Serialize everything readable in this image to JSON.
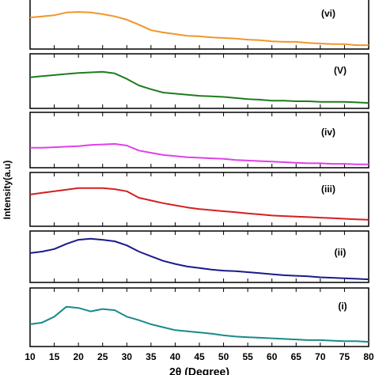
{
  "chart_data": {
    "type": "line",
    "x_label": "2θ (Degree)",
    "y_label": "Intensity(a.u)",
    "x": [
      10,
      12.5,
      15,
      17.5,
      20,
      22.5,
      25,
      27.5,
      30,
      32.5,
      35,
      37.5,
      40,
      42.5,
      45,
      47.5,
      50,
      52.5,
      55,
      57.5,
      60,
      62.5,
      65,
      67.5,
      70,
      72.5,
      75,
      77.5,
      80
    ],
    "xlim": [
      10,
      80
    ],
    "xticks": [
      10,
      15,
      20,
      25,
      30,
      35,
      40,
      45,
      50,
      55,
      60,
      65,
      70,
      75,
      80
    ],
    "ylim": [
      0,
      100
    ],
    "series": [
      {
        "name": "(i)",
        "color": "#1a8a8a",
        "values": [
          38,
          41,
          51,
          68,
          66,
          60,
          64,
          62,
          51,
          45,
          38,
          33,
          28,
          26,
          24,
          22,
          19,
          17,
          16,
          15,
          14,
          13,
          12,
          11,
          11,
          10,
          9,
          9,
          8
        ]
      },
      {
        "name": "(ii)",
        "color": "#1a1a8c",
        "values": [
          57,
          60,
          65,
          75,
          83,
          85,
          83,
          80,
          72,
          60,
          51,
          42,
          36,
          31,
          28,
          25,
          23,
          22,
          20,
          18,
          16,
          14,
          13,
          12,
          10,
          9,
          8,
          7,
          6
        ]
      },
      {
        "name": "(iii)",
        "color": "#d42020",
        "values": [
          59,
          62,
          65,
          68,
          71,
          71,
          71,
          69,
          65,
          53,
          48,
          43,
          39,
          35,
          32,
          30,
          28,
          26,
          24,
          22,
          20,
          19,
          18,
          17,
          16,
          15,
          14,
          13,
          12
        ]
      },
      {
        "name": "(iv)",
        "color": "#e040e8",
        "values": [
          36,
          36,
          37,
          38,
          39,
          41,
          42,
          43,
          40,
          31,
          27,
          23,
          21,
          19,
          18,
          17,
          16,
          14,
          13,
          12,
          11,
          10,
          9,
          8,
          8,
          7,
          7,
          6,
          6
        ]
      },
      {
        "name": "(V)",
        "color": "#1e7d1e",
        "values": [
          57,
          59,
          61,
          63,
          65,
          66,
          67,
          64,
          54,
          42,
          35,
          29,
          27,
          25,
          23,
          22,
          21,
          19,
          17,
          16,
          14,
          14,
          13,
          13,
          12,
          12,
          12,
          11,
          10
        ]
      },
      {
        "name": "(vi)",
        "color": "#f0962a",
        "values": [
          57,
          59,
          61,
          66,
          67,
          66,
          63,
          59,
          53,
          44,
          34,
          30,
          27,
          24,
          23,
          21,
          20,
          19,
          17,
          16,
          14,
          13,
          13,
          11,
          10,
          9,
          9,
          7,
          7
        ]
      }
    ]
  }
}
